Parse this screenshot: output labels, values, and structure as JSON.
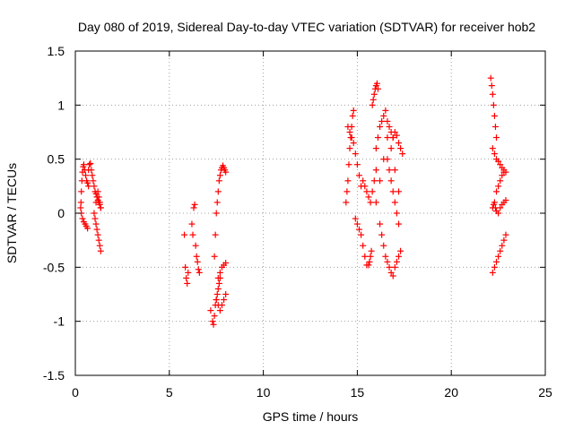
{
  "chart_data": {
    "type": "scatter",
    "title": "Day 080 of 2019, Sidereal Day-to-day VTEC variation (SDTVAR) for receiver hob2",
    "xlabel": "GPS time / hours",
    "ylabel": "SDTVAR / TECUs",
    "xlim": [
      0,
      25
    ],
    "ylim": [
      -1.5,
      1.5
    ],
    "xticks": [
      0,
      5,
      10,
      15,
      20,
      25
    ],
    "yticks": [
      -1.5,
      -1,
      -0.5,
      0,
      0.5,
      1,
      1.5
    ],
    "xtick_labels": [
      "0",
      "5",
      "10",
      "15",
      "20",
      "25"
    ],
    "ytick_labels": [
      "-1.5",
      "-1",
      "-0.5",
      "0",
      "0.5",
      "1",
      "1.5"
    ],
    "grid": true,
    "marker": "+",
    "marker_color": "#ff0000",
    "series": [
      {
        "name": "SDTVAR",
        "x": [
          0.3,
          0.32,
          0.35,
          0.38,
          0.42,
          0.45,
          0.5,
          0.55,
          0.6,
          0.65,
          0.7,
          0.28,
          0.32,
          0.38,
          0.45,
          0.52,
          0.58,
          0.65,
          0.7,
          0.75,
          0.8,
          0.85,
          0.9,
          0.95,
          1.0,
          1.05,
          1.1,
          1.15,
          1.2,
          1.25,
          1.3,
          1.35,
          1.0,
          1.05,
          1.1,
          1.15,
          1.2,
          1.25,
          1.3,
          1.35,
          1.1,
          1.15,
          1.2,
          1.25,
          1.3,
          1.35,
          5.8,
          5.85,
          5.9,
          5.95,
          6.0,
          6.2,
          6.25,
          6.3,
          6.35,
          6.4,
          6.45,
          6.5,
          6.55,
          6.6,
          7.2,
          7.3,
          7.35,
          7.4,
          7.45,
          7.5,
          7.55,
          7.6,
          7.65,
          7.7,
          7.4,
          7.45,
          7.5,
          7.55,
          7.6,
          7.65,
          7.7,
          7.75,
          7.8,
          7.85,
          7.9,
          7.95,
          8.0,
          7.5,
          7.6,
          7.7,
          7.8,
          7.9,
          8.0,
          7.6,
          7.7,
          7.8,
          7.9,
          8.0,
          14.4,
          14.45,
          14.5,
          14.55,
          14.6,
          14.65,
          14.7,
          14.75,
          14.8,
          14.5,
          14.6,
          14.7,
          14.8,
          14.9,
          15.0,
          15.1,
          15.2,
          14.9,
          15.0,
          15.1,
          15.2,
          15.3,
          15.4,
          15.5,
          15.3,
          15.4,
          15.5,
          15.6,
          15.7,
          15.8,
          15.9,
          16.0,
          15.8,
          15.85,
          15.9,
          15.95,
          16.0,
          16.05,
          16.1,
          16.0,
          16.1,
          16.2,
          16.3,
          16.4,
          16.5,
          16.6,
          16.7,
          16.8,
          16.9,
          16.2,
          16.3,
          16.4,
          16.5,
          16.6,
          16.7,
          16.8,
          16.9,
          17.0,
          17.1,
          17.2,
          17.3,
          16.6,
          16.7,
          16.8,
          16.9,
          17.0,
          17.1,
          17.2,
          16.9,
          17.0,
          17.1,
          17.2,
          17.3,
          17.4,
          15.6,
          15.65,
          15.7,
          15.75,
          16.0,
          16.2,
          16.4,
          16.6,
          16.8,
          17.0,
          17.2,
          22.1,
          22.15,
          22.2,
          22.25,
          22.3,
          22.35,
          22.4,
          22.2,
          22.3,
          22.4,
          22.5,
          22.6,
          22.7,
          22.8,
          22.9,
          22.2,
          22.25,
          22.3,
          22.35,
          22.4,
          22.5,
          22.6,
          22.7,
          22.8,
          22.9,
          22.4,
          22.5,
          22.6,
          22.7,
          22.8,
          22.2,
          22.3,
          22.4,
          22.5,
          22.6,
          22.7,
          22.8,
          22.9
        ],
        "y": [
          0.1,
          0.2,
          0.3,
          0.38,
          0.43,
          0.45,
          0.4,
          0.35,
          0.3,
          0.28,
          0.25,
          0.05,
          0.0,
          -0.05,
          -0.08,
          -0.1,
          -0.12,
          -0.14,
          0.4,
          0.45,
          0.46,
          0.4,
          0.35,
          0.3,
          0.25,
          0.2,
          0.18,
          0.15,
          0.12,
          0.1,
          0.08,
          0.05,
          0.0,
          -0.05,
          -0.1,
          -0.15,
          -0.2,
          -0.25,
          -0.3,
          -0.35,
          0.1,
          0.15,
          0.2,
          0.15,
          0.1,
          0.05,
          -0.2,
          -0.5,
          -0.6,
          -0.65,
          -0.55,
          -0.1,
          -0.2,
          0.05,
          0.08,
          -0.3,
          -0.4,
          -0.45,
          -0.52,
          -0.55,
          -0.9,
          -1.0,
          -1.03,
          -0.95,
          -0.85,
          -0.8,
          -0.75,
          -0.7,
          -0.65,
          -0.6,
          -0.4,
          -0.2,
          0.0,
          0.1,
          0.2,
          0.3,
          0.35,
          0.4,
          0.42,
          0.44,
          0.42,
          0.4,
          0.38,
          -0.8,
          -0.85,
          -0.9,
          -0.85,
          -0.8,
          -0.75,
          -0.6,
          -0.55,
          -0.5,
          -0.48,
          -0.46,
          0.1,
          0.2,
          0.3,
          0.45,
          0.6,
          0.7,
          0.8,
          0.9,
          0.95,
          0.8,
          0.75,
          0.7,
          0.65,
          0.55,
          0.45,
          0.35,
          0.25,
          -0.05,
          -0.1,
          -0.15,
          -0.2,
          -0.3,
          -0.4,
          -0.48,
          0.3,
          0.25,
          0.2,
          0.15,
          0.1,
          0.2,
          0.3,
          0.4,
          1.0,
          1.05,
          1.1,
          1.15,
          1.18,
          1.2,
          1.15,
          0.6,
          0.7,
          0.8,
          0.85,
          0.9,
          0.95,
          0.85,
          0.8,
          0.75,
          0.7,
          -0.1,
          -0.2,
          -0.3,
          -0.4,
          -0.45,
          -0.5,
          -0.55,
          -0.58,
          -0.5,
          -0.45,
          -0.4,
          -0.35,
          0.5,
          0.4,
          0.3,
          0.2,
          0.1,
          0.0,
          -0.1,
          0.7,
          0.75,
          0.72,
          0.65,
          0.6,
          0.55,
          -0.48,
          -0.45,
          -0.4,
          -0.35,
          0.1,
          0.3,
          0.5,
          0.7,
          0.6,
          0.4,
          0.2,
          1.25,
          1.18,
          1.1,
          1.0,
          0.9,
          0.8,
          0.7,
          0.6,
          0.55,
          0.5,
          0.48,
          0.45,
          0.42,
          0.4,
          0.38,
          0.05,
          0.08,
          0.1,
          0.05,
          0.02,
          0.0,
          0.05,
          0.08,
          0.1,
          0.12,
          0.2,
          0.25,
          0.3,
          0.35,
          0.38,
          -0.55,
          -0.5,
          -0.45,
          -0.4,
          -0.35,
          -0.3,
          -0.25,
          -0.2
        ]
      }
    ]
  }
}
